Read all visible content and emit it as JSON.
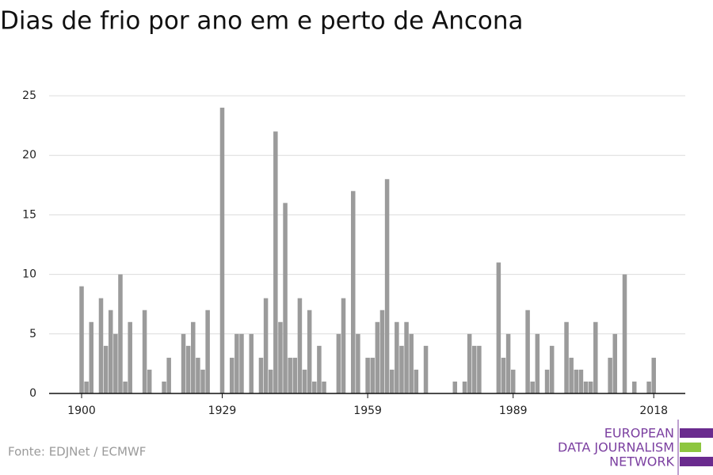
{
  "chart_data": {
    "type": "bar",
    "title": "Dias de frio por ano em e perto de Ancona",
    "x": [
      1900,
      1901,
      1902,
      1903,
      1904,
      1905,
      1906,
      1907,
      1908,
      1909,
      1910,
      1911,
      1912,
      1913,
      1914,
      1915,
      1916,
      1917,
      1918,
      1919,
      1920,
      1921,
      1922,
      1923,
      1924,
      1925,
      1926,
      1927,
      1928,
      1929,
      1930,
      1931,
      1932,
      1933,
      1934,
      1935,
      1936,
      1937,
      1938,
      1939,
      1940,
      1941,
      1942,
      1943,
      1944,
      1945,
      1946,
      1947,
      1948,
      1949,
      1950,
      1951,
      1952,
      1953,
      1954,
      1955,
      1956,
      1957,
      1958,
      1959,
      1960,
      1961,
      1962,
      1963,
      1964,
      1965,
      1966,
      1967,
      1968,
      1969,
      1970,
      1971,
      1972,
      1973,
      1974,
      1975,
      1976,
      1977,
      1978,
      1979,
      1980,
      1981,
      1982,
      1983,
      1984,
      1985,
      1986,
      1987,
      1988,
      1989,
      1990,
      1991,
      1992,
      1993,
      1994,
      1995,
      1996,
      1997,
      1998,
      1999,
      2000,
      2001,
      2002,
      2003,
      2004,
      2005,
      2006,
      2007,
      2008,
      2009,
      2010,
      2011,
      2012,
      2013,
      2014,
      2015,
      2016,
      2017,
      2018
    ],
    "values": [
      9,
      1,
      6,
      0,
      8,
      4,
      7,
      5,
      10,
      1,
      6,
      0,
      0,
      7,
      2,
      0,
      0,
      1,
      3,
      0,
      0,
      5,
      4,
      6,
      3,
      2,
      7,
      0,
      0,
      24,
      0,
      3,
      5,
      5,
      0,
      5,
      0,
      3,
      8,
      2,
      22,
      6,
      16,
      3,
      3,
      8,
      2,
      7,
      1,
      4,
      1,
      0,
      0,
      5,
      8,
      0,
      17,
      5,
      0,
      3,
      3,
      6,
      7,
      18,
      2,
      6,
      4,
      6,
      5,
      2,
      0,
      4,
      0,
      0,
      0,
      0,
      0,
      1,
      0,
      1,
      5,
      4,
      4,
      0,
      0,
      0,
      11,
      3,
      5,
      2,
      0,
      0,
      7,
      1,
      5,
      0,
      2,
      4,
      0,
      0,
      6,
      3,
      2,
      2,
      1,
      1,
      6,
      0,
      0,
      3,
      5,
      0,
      10,
      0,
      1,
      0,
      0,
      1,
      3
    ],
    "color": "#9b9b9b",
    "xlim": [
      1893.3,
      2024.5
    ],
    "xticks": [
      1900,
      1929,
      1959,
      1989,
      2018
    ],
    "ylim": [
      0,
      25
    ],
    "yticks": [
      0,
      5,
      10,
      15,
      20,
      25
    ],
    "grid": true
  },
  "source": "Fonte: EDJNet / ECMWF",
  "logo": [
    "EUROPEAN",
    "DATA JOURNALISM",
    "NETWORK"
  ]
}
